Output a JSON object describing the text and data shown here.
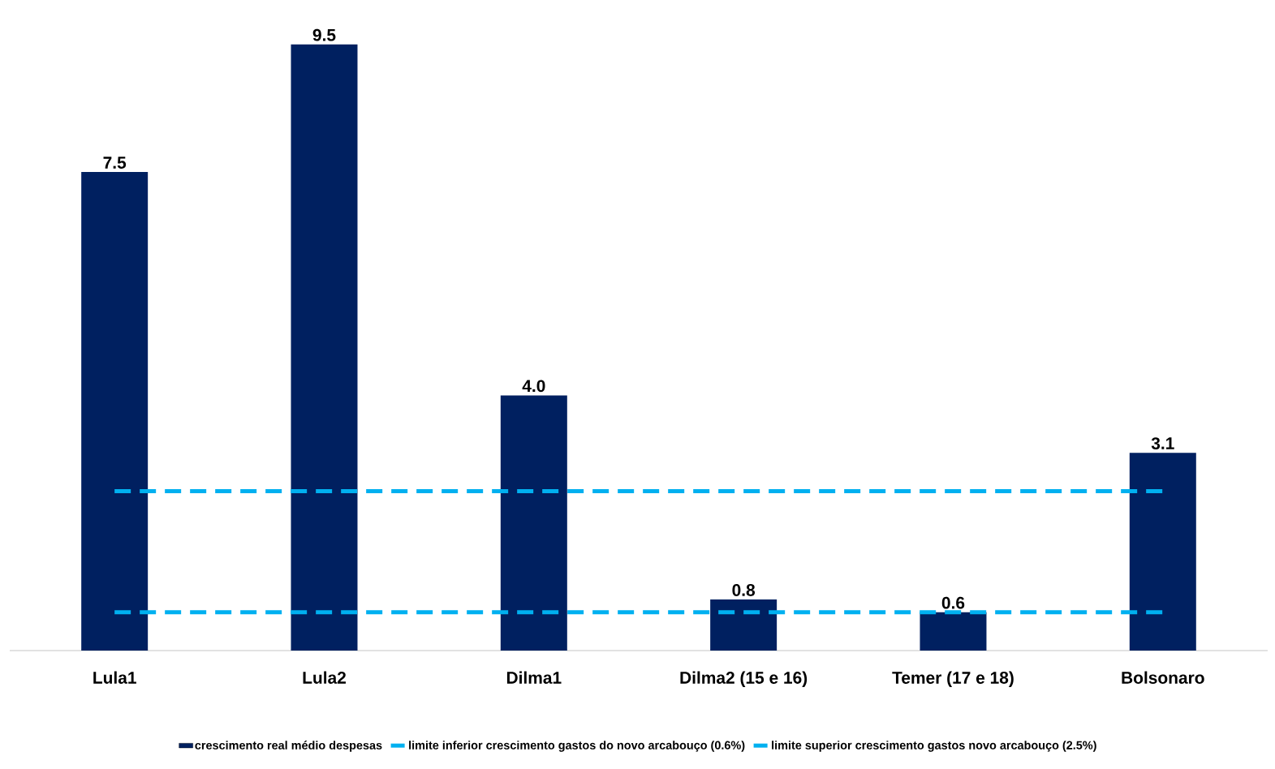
{
  "chart_data": {
    "type": "bar",
    "categories": [
      "Lula1",
      "Lula2",
      "Dilma1",
      "Dilma2 (15 e 16)",
      "Temer (17 e 18)",
      "Bolsonaro"
    ],
    "series": [
      {
        "name": "crescimento real médio despesas",
        "color": "#002060",
        "values": [
          7.5,
          9.5,
          4.0,
          0.8,
          0.6,
          3.1
        ],
        "value_labels": [
          "7.5",
          "9.5",
          "4.0",
          "0.8",
          "0.6",
          "3.1"
        ]
      },
      {
        "name": "limite inferior crescimento gastos do novo arcabouço (0.6%)",
        "type": "line",
        "line_style": "dashed",
        "color": "#00b0f0",
        "values": [
          0.6,
          0.6,
          0.6,
          0.6,
          0.6,
          0.6
        ]
      },
      {
        "name": "limite superior crescimento gastos novo arcabouço (2.5%)",
        "type": "line",
        "line_style": "dashed",
        "color": "#00b0f0",
        "values": [
          2.5,
          2.5,
          2.5,
          2.5,
          2.5,
          2.5
        ]
      }
    ],
    "grid": false,
    "legend": "bottom"
  }
}
